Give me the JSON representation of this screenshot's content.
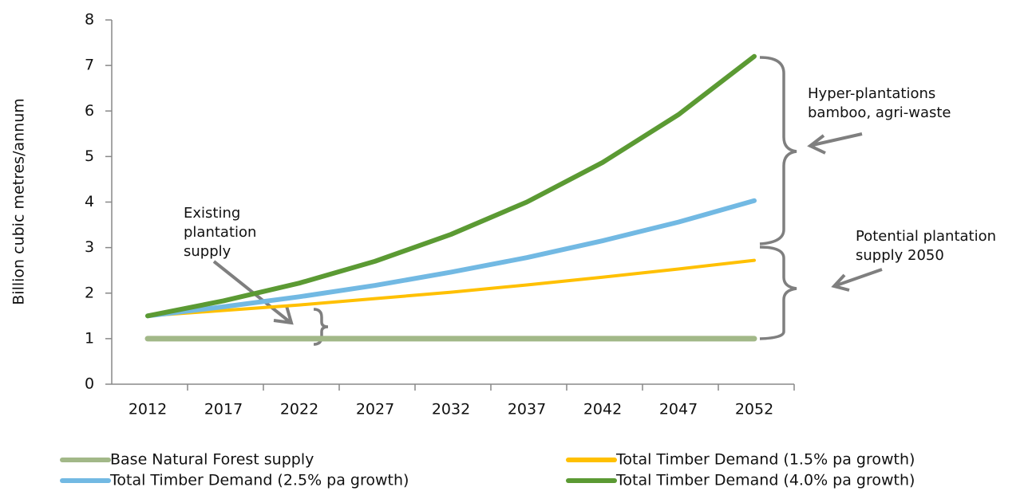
{
  "chart_data": {
    "type": "line",
    "ylabel": "Billion cubic metres/annum",
    "categories": [
      "2012",
      "2017",
      "2022",
      "2027",
      "2032",
      "2037",
      "2042",
      "2047",
      "2052"
    ],
    "series": [
      {
        "name": "Base Natural Forest supply",
        "color": "#a2b888",
        "values": [
          1,
          1,
          1,
          1,
          1,
          1,
          1,
          1,
          1
        ]
      },
      {
        "name": "Total Timber Demand (1.5% pa growth)",
        "color": "#ffc000",
        "values": [
          1.5,
          1.62,
          1.74,
          1.88,
          2.02,
          2.18,
          2.35,
          2.53,
          2.72
        ]
      },
      {
        "name": "Total Timber Demand  (2.5% pa growth)",
        "color": "#72b9e3",
        "values": [
          1.5,
          1.7,
          1.92,
          2.17,
          2.46,
          2.78,
          3.15,
          3.56,
          4.03
        ]
      },
      {
        "name": "Total Timber Demand (4.0% pa growth)",
        "color": "#5b9a33",
        "values": [
          1.5,
          1.83,
          2.22,
          2.7,
          3.29,
          4.0,
          4.87,
          5.92,
          7.2
        ]
      }
    ],
    "ylim": [
      0,
      8
    ],
    "yticks": [
      0,
      1,
      2,
      3,
      4,
      5,
      6,
      7,
      8
    ],
    "annotations": [
      [
        "Hyper-plantations",
        "bamboo, agri-waste"
      ],
      [
        "Existing",
        "plantation",
        "supply"
      ],
      [
        "Potential plantation",
        "supply 2050"
      ]
    ]
  }
}
